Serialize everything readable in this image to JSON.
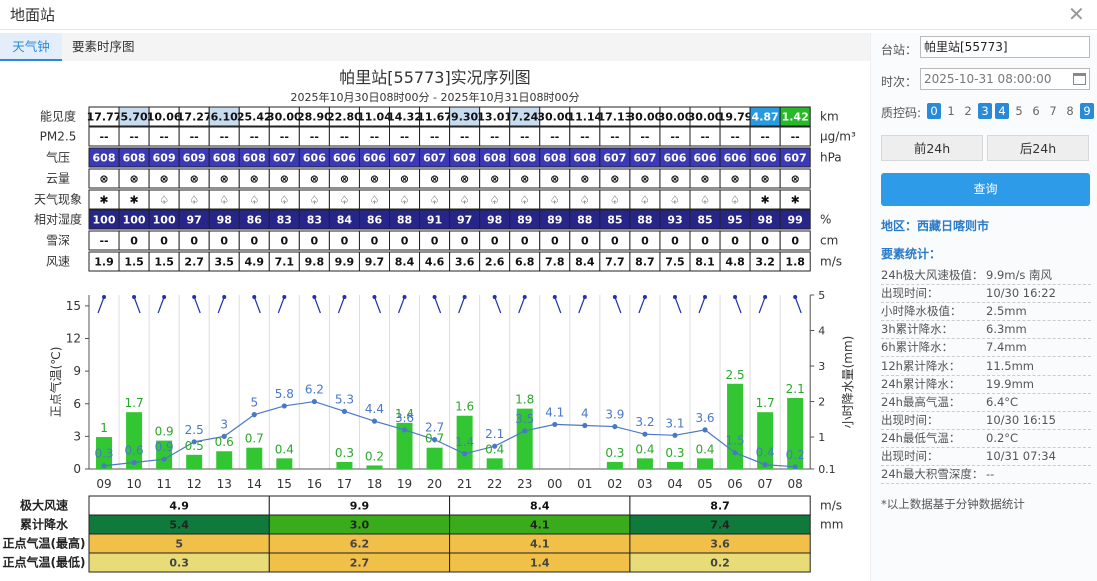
{
  "window": {
    "title": "地面站",
    "close_icon": "close-icon"
  },
  "tabs": [
    {
      "label": "天气钟"
    },
    {
      "label": "要素时序图"
    }
  ],
  "header": {
    "title": "帕里站[55773]实况序列图",
    "subtitle": "2025年10月30日08时00分 - 2025年10月31日08时00分"
  },
  "rows": {
    "vis": {
      "label": "能见度",
      "unit": "km",
      "values": [
        "17.77",
        "5.70",
        "10.06",
        "17.27",
        "6.10",
        "25.42",
        "30.00",
        "28.90",
        "22.80",
        "11.04",
        "14.32",
        "11.67",
        "9.30",
        "13.01",
        "7.24",
        "30.00",
        "11.14",
        "17.13",
        "30.00",
        "30.00",
        "30.00",
        "19.79",
        "4.87",
        "1.42"
      ]
    },
    "pm25": {
      "label": "PM2.5",
      "unit": "μg/m³",
      "values": [
        "--",
        "--",
        "--",
        "--",
        "--",
        "--",
        "--",
        "--",
        "--",
        "--",
        "--",
        "--",
        "--",
        "--",
        "--",
        "--",
        "--",
        "--",
        "--",
        "--",
        "--",
        "--",
        "--",
        "--"
      ]
    },
    "pres": {
      "label": "气压",
      "unit": "hPa",
      "values": [
        "608",
        "608",
        "609",
        "609",
        "608",
        "608",
        "607",
        "606",
        "606",
        "606",
        "607",
        "607",
        "608",
        "608",
        "608",
        "608",
        "608",
        "607",
        "607",
        "606",
        "606",
        "606",
        "606",
        "607"
      ]
    },
    "cloud": {
      "label": "云量",
      "unit": "",
      "values": [
        "⊗",
        "⊗",
        "⊗",
        "⊗",
        "⊗",
        "⊗",
        "⊗",
        "⊗",
        "⊗",
        "⊗",
        "⊗",
        "⊗",
        "⊗",
        "⊗",
        "⊗",
        "⊗",
        "⊗",
        "⊗",
        "⊗",
        "⊗",
        "⊗",
        "⊗",
        "⊗",
        "⊗"
      ]
    },
    "wx": {
      "label": "天气现象",
      "unit": "",
      "values": [
        "✱",
        "✱",
        "♤",
        "♤",
        "♤",
        "♤",
        "♤",
        "♤",
        "♤",
        "♤",
        "♤",
        "♤",
        "♤",
        "♤",
        "♤",
        "♤",
        "♤",
        "♤",
        "♤",
        "♤",
        "♤",
        "♤",
        "✱",
        "✱"
      ]
    },
    "rh": {
      "label": "相对湿度",
      "unit": "%",
      "values": [
        "100",
        "100",
        "100",
        "97",
        "98",
        "86",
        "83",
        "83",
        "84",
        "86",
        "88",
        "91",
        "97",
        "98",
        "89",
        "89",
        "88",
        "85",
        "88",
        "93",
        "85",
        "95",
        "98",
        "99"
      ]
    },
    "snow": {
      "label": "雪深",
      "unit": "cm",
      "values": [
        "--",
        "0",
        "0",
        "0",
        "0",
        "0",
        "0",
        "0",
        "0",
        "0",
        "0",
        "0",
        "0",
        "0",
        "0",
        "0",
        "0",
        "0",
        "0",
        "0",
        "0",
        "0",
        "0",
        "0"
      ]
    },
    "wind": {
      "label": "风速",
      "unit": "m/s",
      "values": [
        "1.9",
        "1.5",
        "1.5",
        "2.7",
        "3.5",
        "4.9",
        "7.1",
        "9.8",
        "9.9",
        "9.7",
        "8.4",
        "4.6",
        "3.6",
        "2.6",
        "6.8",
        "7.8",
        "8.4",
        "7.7",
        "8.7",
        "7.5",
        "8.1",
        "4.8",
        "3.2",
        "1.8"
      ]
    }
  },
  "chart_data": {
    "type": "bar",
    "categories": [
      "09",
      "10",
      "11",
      "12",
      "13",
      "14",
      "15",
      "16",
      "17",
      "18",
      "19",
      "20",
      "21",
      "22",
      "23",
      "00",
      "01",
      "02",
      "03",
      "04",
      "05",
      "06",
      "07",
      "08"
    ],
    "ylabel": "正点气温(℃)",
    "y2label": "小时降水量(mm)",
    "ylim": [
      0,
      16
    ],
    "yticks": [
      0,
      3,
      6,
      9,
      12,
      15
    ],
    "y2lim": [
      0.1,
      5
    ],
    "y2ticks": [
      "0.1",
      "1",
      "2",
      "3",
      "4",
      "5"
    ],
    "series": [
      {
        "name": "小时降水量",
        "type": "bar",
        "axis": "right",
        "color": "#33c633",
        "values": [
          1.0,
          1.7,
          0.9,
          0.5,
          0.6,
          0.7,
          0.4,
          0,
          0.3,
          0.2,
          1.4,
          0.7,
          1.6,
          0.4,
          1.8,
          0,
          0,
          0.3,
          0.4,
          0.3,
          0.4,
          2.5,
          1.7,
          2.1
        ]
      },
      {
        "name": "正点气温",
        "type": "line",
        "axis": "left",
        "color": "#4a78c8",
        "values": [
          0.3,
          0.6,
          0.9,
          2.5,
          3.0,
          5.0,
          5.8,
          6.2,
          5.3,
          4.4,
          3.6,
          2.7,
          1.4,
          2.1,
          3.5,
          4.1,
          4.0,
          3.9,
          3.2,
          3.1,
          3.6,
          1.5,
          0.4,
          0.2
        ]
      }
    ]
  },
  "summary": {
    "max_wind": {
      "label": "极大风速",
      "unit": "m/s",
      "values": [
        "4.9",
        "9.9",
        "8.4",
        "8.7"
      ]
    },
    "cum_precip": {
      "label": "累计降水",
      "unit": "mm",
      "values": [
        "5.4",
        "3.0",
        "4.1",
        "7.4"
      ]
    },
    "tmax": {
      "label": "正点气温(最高)",
      "values": [
        "5",
        "6.2",
        "4.1",
        "3.6"
      ]
    },
    "tmin": {
      "label": "正点气温(最低)",
      "values": [
        "0.3",
        "2.7",
        "1.4",
        "0.2"
      ]
    }
  },
  "sidebar": {
    "station_label": "台站：",
    "station_value": "帕里站[55773]",
    "time_label": "时次：",
    "time_value": "2025-10-31 08:00:00",
    "qc_label": "质控码:",
    "qc_codes": [
      "0",
      "1",
      "2",
      "3",
      "4",
      "5",
      "6",
      "7",
      "8",
      "9"
    ],
    "qc_active": [
      "0",
      "3",
      "4",
      "9"
    ],
    "prev_btn": "前24h",
    "next_btn": "后24h",
    "query_btn": "查询",
    "region": "地区：西藏日喀则市",
    "stats_title": "要素统计：",
    "stats": [
      {
        "label": "24h极大风速极值：",
        "value": "9.9m/s 南风"
      },
      {
        "label": "出现时间：",
        "value": "10/30 16:22"
      },
      {
        "label": "小时降水极值：",
        "value": "2.5mm"
      },
      {
        "label": "3h累计降水：",
        "value": "6.3mm"
      },
      {
        "label": "6h累计降水：",
        "value": "7.4mm"
      },
      {
        "label": "12h累计降水：",
        "value": "11.5mm"
      },
      {
        "label": "24h累计降水：",
        "value": "19.9mm"
      },
      {
        "label": "24h最高气温：",
        "value": "6.4°C"
      },
      {
        "label": "出现时间：",
        "value": "10/30 16:15"
      },
      {
        "label": "24h最低气温：",
        "value": "0.2°C"
      },
      {
        "label": "出现时间：",
        "value": "10/31 07:34"
      },
      {
        "label": "24h最大积雪深度：",
        "value": "--"
      }
    ],
    "note": "*以上数据基于分钟数据统计"
  },
  "colors": {
    "accent": "#2a8ad8",
    "query": "#2e9be8",
    "pressure": "#3a3ab8",
    "humidity": "#26268a",
    "visibility_light": "#c8dcf0",
    "visibility_blue": "#2a9ae0",
    "visibility_green": "#27b927",
    "precip_dark": "#0f7a3c",
    "precip_mid": "#3aab1a",
    "precip_light": "#74c418",
    "temp_orange": "#f0c048",
    "temp_yellow": "#e8dc78",
    "bar_green": "#33c633",
    "temp_line": "#4a78c8"
  }
}
